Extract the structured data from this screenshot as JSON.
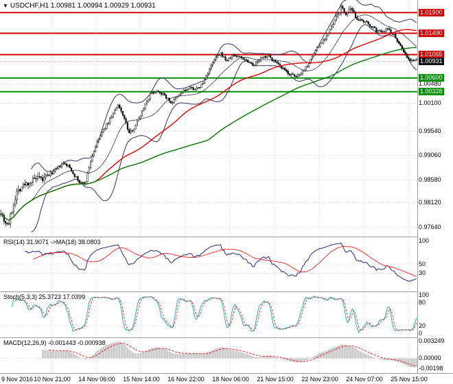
{
  "header": {
    "logo_icon": "▼",
    "title": "USDCHF,H1 1.00981 1.00994 1.00929 1.00931"
  },
  "chart_data": {
    "type": "candlestick",
    "symbol": "USDCHF",
    "timeframe": "H1",
    "current_ohlc": {
      "open": "1.00981",
      "high": "1.00994",
      "low": "1.00929",
      "close": "1.00931"
    },
    "x_labels": [
      "9 Nov 2016",
      "10 Nov 21:00",
      "14 Nov 06:00",
      "15 Nov 14:00",
      "16 Nov 22:00",
      "18 Nov 06:00",
      "21 Nov 15:00",
      "22 Nov 23:00",
      "24 Nov 07:00",
      "25 Nov 15:00"
    ],
    "y_axis_ticks": [
      {
        "price": 1.0048,
        "label": "1.00480"
      },
      {
        "price": 1.001,
        "label": "1.00100"
      },
      {
        "price": 0.9954,
        "label": "0.99540"
      },
      {
        "price": 0.9906,
        "label": "0.99060"
      },
      {
        "price": 0.9858,
        "label": "0.98580"
      },
      {
        "price": 0.9812,
        "label": "0.98120"
      },
      {
        "price": 0.9764,
        "label": "0.97640"
      }
    ],
    "price_levels": [
      {
        "price": 1.019,
        "label": "1.01900",
        "color": "#d40000",
        "role": "resistance"
      },
      {
        "price": 1.0149,
        "label": "1.01490",
        "color": "#d40000",
        "role": "resistance"
      },
      {
        "price": 1.01065,
        "label": "1.01065",
        "color": "#d40000",
        "role": "resistance"
      },
      {
        "price": 1.006,
        "label": "1.00600",
        "color": "#009100",
        "role": "support"
      },
      {
        "price": 1.00328,
        "label": "1.00328",
        "color": "#009100",
        "role": "support"
      }
    ],
    "current_price": {
      "price": 1.00931,
      "label": "1.00931",
      "box_color": "#111111"
    },
    "y_range": [
      0.9745,
      1.0215
    ],
    "bars": 260,
    "price_path_anchors": [
      [
        0,
        0.98
      ],
      [
        6,
        0.9778
      ],
      [
        12,
        0.9768
      ],
      [
        18,
        0.98
      ],
      [
        24,
        0.9833
      ],
      [
        32,
        0.9845
      ],
      [
        42,
        0.9852
      ],
      [
        52,
        0.986
      ],
      [
        62,
        0.9858
      ],
      [
        72,
        0.9868
      ],
      [
        82,
        0.9878
      ],
      [
        92,
        0.989
      ],
      [
        100,
        0.9885
      ],
      [
        108,
        0.9868
      ],
      [
        116,
        0.9852
      ],
      [
        124,
        0.985
      ],
      [
        132,
        0.9895
      ],
      [
        140,
        0.9928
      ],
      [
        148,
        0.995
      ],
      [
        156,
        0.9968
      ],
      [
        164,
        0.9988
      ],
      [
        172,
        1.0005
      ],
      [
        180,
        0.9985
      ],
      [
        188,
        0.995
      ],
      [
        196,
        0.9962
      ],
      [
        204,
        0.9985
      ],
      [
        212,
        1.001
      ],
      [
        220,
        1.003
      ],
      [
        230,
        1.0035
      ],
      [
        240,
        1.0025
      ],
      [
        250,
        1.001
      ],
      [
        258,
        1.0022
      ],
      [
        268,
        1.0035
      ],
      [
        278,
        1.004
      ],
      [
        288,
        1.0038
      ],
      [
        296,
        1.005
      ],
      [
        305,
        1.0078
      ],
      [
        314,
        1.01
      ],
      [
        322,
        1.0108
      ],
      [
        330,
        1.0094
      ],
      [
        340,
        1.0105
      ],
      [
        350,
        1.0102
      ],
      [
        360,
        1.0095
      ],
      [
        370,
        1.0086
      ],
      [
        380,
        1.0098
      ],
      [
        390,
        1.0105
      ],
      [
        400,
        1.0092
      ],
      [
        410,
        1.008
      ],
      [
        420,
        1.007
      ],
      [
        430,
        1.0062
      ],
      [
        440,
        1.0072
      ],
      [
        450,
        1.009
      ],
      [
        458,
        1.0112
      ],
      [
        466,
        1.0128
      ],
      [
        474,
        1.014
      ],
      [
        482,
        1.0158
      ],
      [
        490,
        1.018
      ],
      [
        497,
        1.02
      ],
      [
        504,
        1.0188
      ],
      [
        511,
        1.0195
      ],
      [
        518,
        1.0183
      ],
      [
        526,
        1.0172
      ],
      [
        534,
        1.017
      ],
      [
        542,
        1.0162
      ],
      [
        550,
        1.0152
      ],
      [
        558,
        1.0155
      ],
      [
        566,
        1.0158
      ],
      [
        574,
        1.0145
      ],
      [
        582,
        1.0128
      ],
      [
        590,
        1.0108
      ],
      [
        598,
        1.0092
      ],
      [
        604,
        1.0098
      ],
      [
        608,
        1.0093
      ]
    ],
    "overlays": {
      "bollinger": {
        "period": 20,
        "deviation": 2,
        "color": "#30305a"
      },
      "ma_red": {
        "period": 60,
        "color": "#e60000"
      },
      "ma_green": {
        "period": 130,
        "color": "#007a00"
      }
    },
    "panels": [
      {
        "id": "rsi",
        "label": "RSI(14) 31.9071 ->MA(18) 38.0803",
        "line_color": "#26267f",
        "signal_color": "#ff0000",
        "value": 31.9071,
        "ma_value": 38.0803,
        "range": [
          -5,
          105
        ],
        "ticks": [
          {
            "v": 100,
            "label": "100"
          },
          {
            "v": 50,
            "label": "50"
          },
          {
            "v": 30,
            "label": "30"
          }
        ]
      },
      {
        "id": "stoch",
        "label": "Stoch(5,3,3) 25.3723 17.0399",
        "line_color": "#20b2aa",
        "signal_color": "#ff0000",
        "value": 25.3723,
        "signal_value": 17.0399,
        "range": [
          -5,
          105
        ],
        "ticks": [
          {
            "v": 100,
            "label": "100"
          },
          {
            "v": 80,
            "label": "80"
          },
          {
            "v": 20,
            "label": "20"
          },
          {
            "v": 0,
            "label": "0"
          }
        ]
      },
      {
        "id": "macd",
        "label": "MACD(12,26,9) -0.001443 -0.000938",
        "hist_color": "#b4b4b4",
        "signal_color": "#ff0000",
        "value": -0.001443,
        "signal_value": -0.000938,
        "range": [
          -0.0024,
          0.0036
        ],
        "ticks": [
          {
            "v": 0.003249,
            "label": "0.003249"
          },
          {
            "v": 0,
            "label": "0.00000"
          },
          {
            "v": -0.00198,
            "label": "-0.00198"
          }
        ]
      }
    ],
    "colors": {
      "grid": "#c8c8c8",
      "candle": "#000000",
      "bull_fill": "#ffffff",
      "bear_fill": "#000000",
      "bid_line": "#aaaaaa"
    }
  }
}
